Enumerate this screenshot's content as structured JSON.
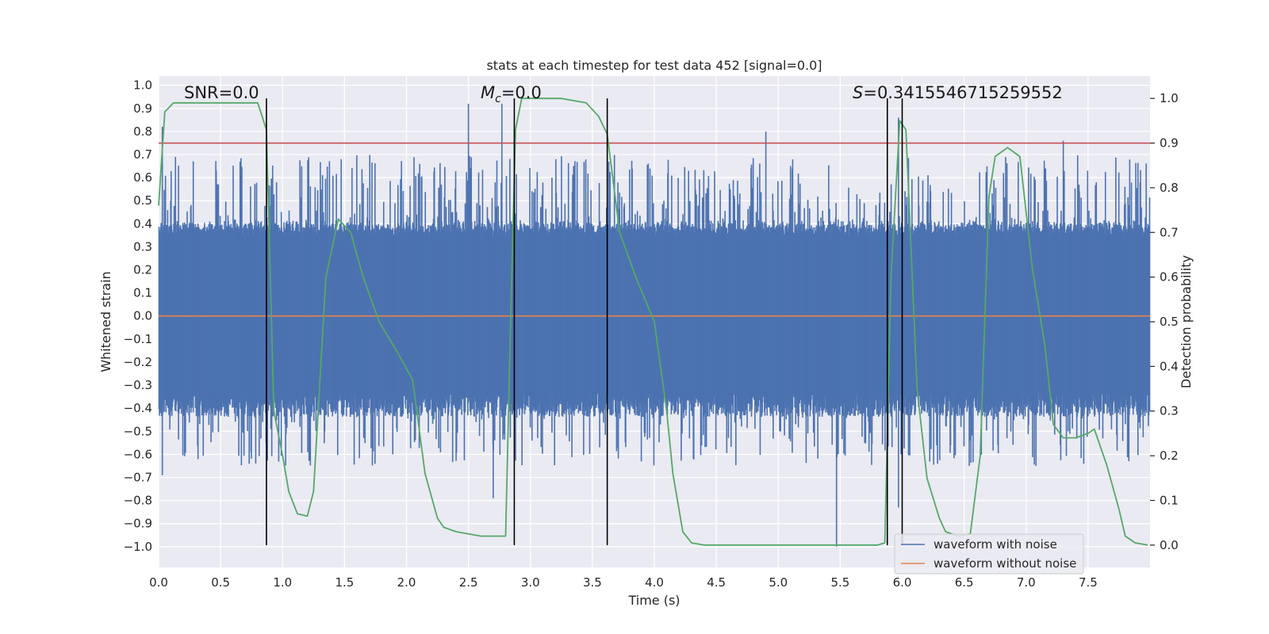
{
  "chart_data": {
    "type": "line",
    "title": "stats at each timestep for test data 452 [signal=0.0]",
    "xlabel": "Time (s)",
    "ylabel": "Whitened strain",
    "y2label": "Detection probability",
    "xlim": [
      0.0,
      8.0
    ],
    "ylim": [
      -1.09,
      1.04
    ],
    "y2lim": [
      -0.05,
      1.05
    ],
    "xticks": [
      0.0,
      0.5,
      1.0,
      1.5,
      2.0,
      2.5,
      3.0,
      3.5,
      4.0,
      4.5,
      5.0,
      5.5,
      6.0,
      6.5,
      7.0,
      7.5
    ],
    "xtick_labels": [
      "0.0",
      "0.5",
      "1.0",
      "1.5",
      "2.0",
      "2.5",
      "3.0",
      "3.5",
      "4.0",
      "4.5",
      "5.0",
      "5.5",
      "6.0",
      "6.5",
      "7.0",
      "7.5"
    ],
    "yticks": [
      -1.0,
      -0.9,
      -0.8,
      -0.7,
      -0.6,
      -0.5,
      -0.4,
      -0.3,
      -0.2,
      -0.1,
      0.0,
      0.1,
      0.2,
      0.3,
      0.4,
      0.5,
      0.6,
      0.7,
      0.8,
      0.9,
      1.0
    ],
    "ytick_labels": [
      "−1.0",
      "−0.9",
      "−0.8",
      "−0.7",
      "−0.6",
      "−0.5",
      "−0.4",
      "−0.3",
      "−0.2",
      "−0.1",
      "0.0",
      "0.1",
      "0.2",
      "0.3",
      "0.4",
      "0.5",
      "0.6",
      "0.7",
      "0.8",
      "0.9",
      "1.0"
    ],
    "y2ticks": [
      0.0,
      0.1,
      0.2,
      0.3,
      0.4,
      0.5,
      0.6,
      0.7,
      0.8,
      0.9,
      1.0
    ],
    "y2tick_labels": [
      "0.0",
      "0.1",
      "0.2",
      "0.3",
      "0.4",
      "0.5",
      "0.6",
      "0.7",
      "0.8",
      "0.9",
      "1.0"
    ],
    "grid": true,
    "legend_position": "lower-right",
    "series": [
      {
        "name": "waveform with noise",
        "color": "#4c72b0",
        "axis": "left",
        "description_values": {
          "envelope_typical": 0.35,
          "max_spike": 0.94,
          "min_spike": -1.0,
          "notable_spikes": [
            {
              "x": 0.03,
              "y": 0.82
            },
            {
              "x": 0.03,
              "y": -0.69
            },
            {
              "x": 2.5,
              "y": 0.92
            },
            {
              "x": 2.77,
              "y": 0.92
            },
            {
              "x": 2.7,
              "y": -0.79
            },
            {
              "x": 4.9,
              "y": 0.8
            },
            {
              "x": 5.47,
              "y": -1.0
            },
            {
              "x": 5.97,
              "y": 0.86
            },
            {
              "x": 5.97,
              "y": -0.83
            },
            {
              "x": 7.3,
              "y": 0.76
            }
          ]
        }
      },
      {
        "name": "waveform without noise",
        "color": "#dd8452",
        "axis": "left",
        "x": [
          0.0,
          8.0
        ],
        "y": [
          0.0,
          0.0
        ]
      },
      {
        "name": "",
        "color": "#55a868",
        "axis": "right",
        "x": [
          0.0,
          0.05,
          0.12,
          0.3,
          0.5,
          0.7,
          0.8,
          0.87,
          0.93,
          1.0,
          1.05,
          1.12,
          1.2,
          1.25,
          1.35,
          1.45,
          1.55,
          1.65,
          1.78,
          1.93,
          2.05,
          2.15,
          2.25,
          2.3,
          2.4,
          2.6,
          2.8,
          2.84,
          2.88,
          2.93,
          3.0,
          3.25,
          3.45,
          3.55,
          3.62,
          3.72,
          3.85,
          4.0,
          4.1,
          4.15,
          4.23,
          4.3,
          4.4,
          5.0,
          5.8,
          5.86,
          5.91,
          5.98,
          6.03,
          6.12,
          6.2,
          6.3,
          6.35,
          6.45,
          6.55,
          6.63,
          6.7,
          6.75,
          6.85,
          6.95,
          7.05,
          7.15,
          7.22,
          7.3,
          7.4,
          7.5,
          7.55,
          7.65,
          7.75,
          7.8,
          7.88,
          7.98
        ],
        "y": [
          0.76,
          0.97,
          0.99,
          0.99,
          0.99,
          0.99,
          0.99,
          0.93,
          0.3,
          0.2,
          0.12,
          0.07,
          0.065,
          0.12,
          0.6,
          0.73,
          0.7,
          0.6,
          0.5,
          0.43,
          0.37,
          0.16,
          0.06,
          0.04,
          0.03,
          0.02,
          0.02,
          0.5,
          0.93,
          1.0,
          1.0,
          1.0,
          0.99,
          0.96,
          0.92,
          0.7,
          0.6,
          0.5,
          0.3,
          0.16,
          0.03,
          0.005,
          0.0,
          0.0,
          0.0,
          0.005,
          0.6,
          0.95,
          0.93,
          0.35,
          0.15,
          0.06,
          0.03,
          0.02,
          0.025,
          0.2,
          0.78,
          0.87,
          0.89,
          0.87,
          0.62,
          0.45,
          0.27,
          0.24,
          0.24,
          0.25,
          0.26,
          0.18,
          0.08,
          0.02,
          0.005,
          0.0
        ]
      }
    ],
    "threshold": {
      "axis": "right",
      "y": 0.9,
      "color": "#c44e52"
    },
    "vlines": [
      0.87,
      2.87,
      3.62,
      5.88,
      6.0
    ],
    "annotations": [
      {
        "text": "SNR=0.0"
      },
      {
        "text_main": "M",
        "text_sub": "c",
        "text_rest": "=0.0"
      },
      {
        "text_main": "S",
        "text_rest": "=0.3415546715259552"
      }
    ]
  }
}
